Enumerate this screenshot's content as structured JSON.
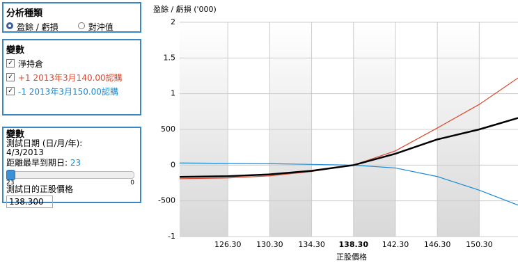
{
  "panels": {
    "analysis": {
      "title": "分析種類",
      "options": [
        "盈餘 / 虧損",
        "對沖值"
      ]
    },
    "variables": {
      "title": "變數",
      "items": [
        "淨持倉",
        "+1 2013年3月140.00認購",
        "-1 2013年3月150.00認購"
      ]
    },
    "test": {
      "title": "變數",
      "date_label": "測試日期 (日/月/年):",
      "date": "4/3/2013",
      "days_label": "距離最早到期日:",
      "days": 23,
      "slider_start": 23,
      "slider_end": 0,
      "price_label": "測試日的正股價格",
      "price": "138.300"
    }
  },
  "chart_data": {
    "type": "line",
    "title": "盈餘 / 虧損 ('000)",
    "x_label": "正股價格",
    "x": [
      121.7,
      126.3,
      130.3,
      134.3,
      138.3,
      142.3,
      146.3,
      150.3,
      154
    ],
    "series": [
      {
        "name": "淨持倉",
        "color": "#000000",
        "values": [
          -165,
          -155,
          -130,
          -80,
          0,
          160,
          360,
          500,
          660
        ]
      },
      {
        "name": "+1 2013年3月140.00認購",
        "color": "#d9482e",
        "values": [
          -190,
          -180,
          -150,
          -90,
          0,
          200,
          520,
          850,
          1220
        ]
      },
      {
        "name": "-1 2013年3月150.00認購",
        "color": "#1a8ad4",
        "values": [
          30,
          25,
          20,
          10,
          0,
          -40,
          -160,
          -350,
          -560
        ]
      }
    ],
    "xlim": [
      121.7,
      154
    ],
    "ylim": [
      -1000,
      2000
    ],
    "xticks": [
      {
        "value": 126.3,
        "label": "126.30"
      },
      {
        "value": 130.3,
        "label": "130.30"
      },
      {
        "value": 134.3,
        "label": "134.30"
      },
      {
        "value": 138.3,
        "label": "138.30"
      },
      {
        "value": 142.3,
        "label": "142.30"
      },
      {
        "value": 146.3,
        "label": "146.30"
      },
      {
        "value": 150.3,
        "label": "150.30"
      }
    ],
    "yticks": [
      {
        "value": 2000,
        "label": "2"
      },
      {
        "value": 1500,
        "label": "1.5"
      },
      {
        "value": 1000,
        "label": "1"
      },
      500,
      0,
      -500,
      {
        "value": -1000,
        "label": "-1"
      }
    ],
    "grid": true
  }
}
